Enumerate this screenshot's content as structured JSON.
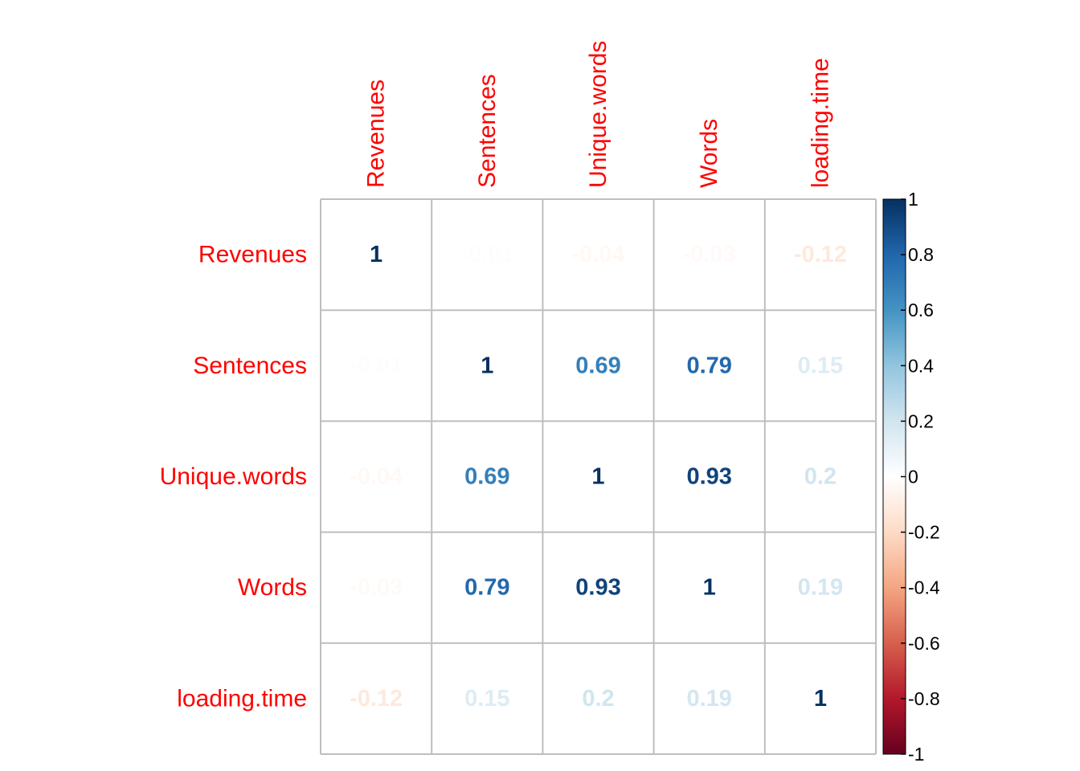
{
  "chart_data": {
    "type": "heatmap",
    "variables": [
      "Revenues",
      "Sentences",
      "Unique.words",
      "Words",
      "loading.time"
    ],
    "matrix": [
      [
        1,
        -0.01,
        -0.04,
        -0.03,
        -0.12
      ],
      [
        -0.01,
        1,
        0.69,
        0.79,
        0.15
      ],
      [
        -0.04,
        0.69,
        1,
        0.93,
        0.2
      ],
      [
        -0.03,
        0.79,
        0.93,
        1,
        0.19
      ],
      [
        -0.12,
        0.15,
        0.2,
        0.19,
        1
      ]
    ],
    "value_labels": [
      [
        "1",
        "-0.01",
        "-0.04",
        "-0.03",
        "-0.12"
      ],
      [
        "-0.01",
        "1",
        "0.69",
        "0.79",
        "0.15"
      ],
      [
        "-0.04",
        "0.69",
        "1",
        "0.93",
        "0.2"
      ],
      [
        "-0.03",
        "0.79",
        "0.93",
        "1",
        "0.19"
      ],
      [
        "-0.12",
        "0.15",
        "0.2",
        "0.19",
        "1"
      ]
    ],
    "colorbar": {
      "range": [
        -1,
        1
      ],
      "ticks": [
        "1",
        "0.8",
        "0.6",
        "0.4",
        "0.2",
        "0",
        "-0.2",
        "-0.4",
        "-0.6",
        "-0.8",
        "-1"
      ],
      "tick_values": [
        1,
        0.8,
        0.6,
        0.4,
        0.2,
        0,
        -0.2,
        -0.4,
        -0.6,
        -0.8,
        -1
      ],
      "colors": [
        "#67001F",
        "#B2182B",
        "#D6604D",
        "#F4A582",
        "#FDDBC7",
        "#FFFFFF",
        "#D1E5F0",
        "#92C5DE",
        "#4393C3",
        "#2166AC",
        "#053061"
      ],
      "placement": "right"
    },
    "label_color": "#FF0000",
    "grid_color": "#BEBEBE",
    "column_labels_rotated": true
  }
}
